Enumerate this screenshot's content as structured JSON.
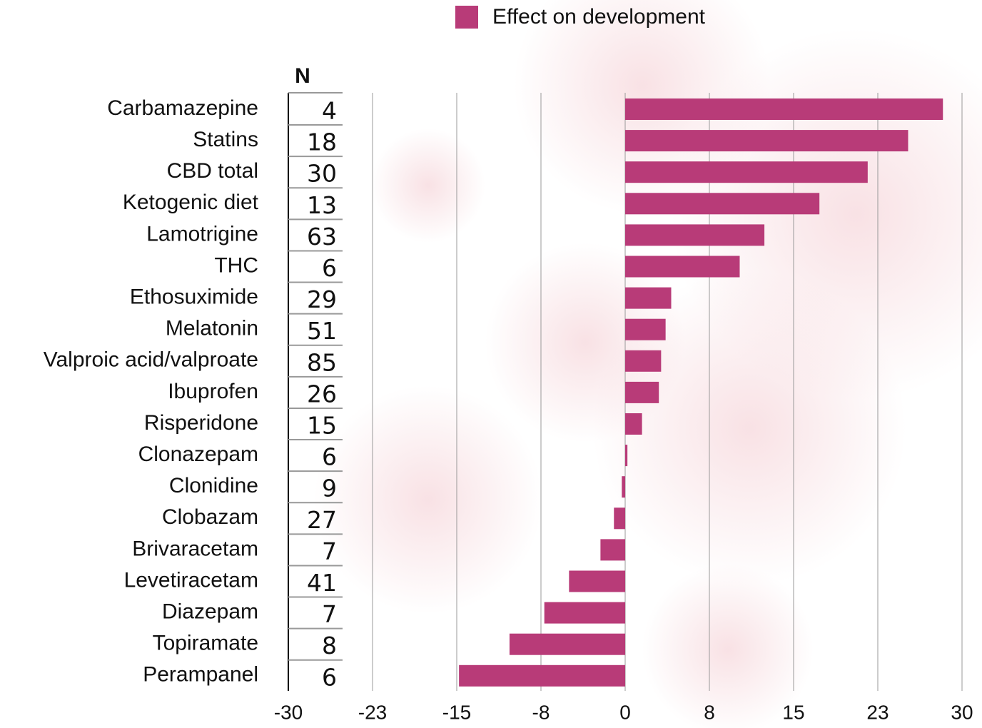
{
  "chart_data": {
    "type": "bar",
    "orientation": "horizontal",
    "categories": [
      "Carbamazepine",
      "Statins",
      "CBD total",
      "Ketogenic diet",
      "Lamotrigine",
      "THC",
      "Ethosuximide",
      "Melatonin",
      "Valproic acid/valproate",
      "Ibuprofen",
      "Risperidone",
      "Clonazepam",
      "Clonidine",
      "Clobazam",
      "Brivaracetam",
      "Levetiracetam",
      "Diazepam",
      "Topiramate",
      "Perampanel"
    ],
    "series": [
      {
        "name": "Effect on development",
        "color": "#b83b78",
        "values": [
          28.3,
          25.2,
          21.6,
          17.3,
          12.4,
          10.2,
          4.1,
          3.6,
          3.2,
          3.0,
          1.5,
          0.2,
          -0.3,
          -1.0,
          -2.2,
          -5.0,
          -7.2,
          -10.3,
          -14.8
        ]
      }
    ],
    "n_label": "N",
    "n_values": [
      4,
      18,
      30,
      13,
      63,
      6,
      29,
      51,
      85,
      26,
      15,
      6,
      9,
      27,
      7,
      41,
      7,
      8,
      6
    ],
    "xlim": [
      -30,
      30
    ],
    "xticks": [
      -30,
      {
        "value": -22.5,
        "label": "-23"
      },
      -15,
      {
        "value": -7.5,
        "label": "-8"
      },
      0,
      {
        "value": 7.5,
        "label": "8"
      },
      15,
      {
        "value": 22.5,
        "label": "23"
      },
      30
    ],
    "grid": true
  }
}
